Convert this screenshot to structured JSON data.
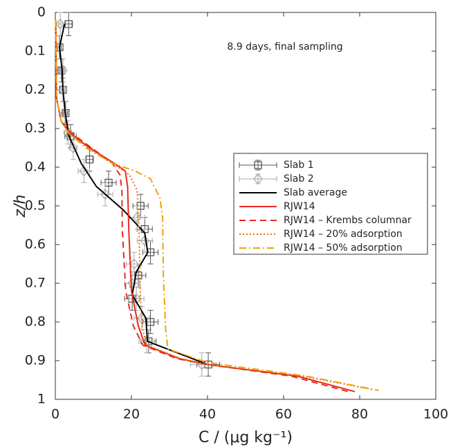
{
  "chart_data": {
    "type": "line",
    "annotation": "8.9 days, final sampling",
    "xlabel": "C / (μg kg⁻¹)",
    "ylabel": "z/h",
    "xlim": [
      0,
      100
    ],
    "xticks": [
      0,
      20,
      40,
      60,
      80,
      100
    ],
    "ylim": [
      0,
      1
    ],
    "yticks": [
      0,
      0.1,
      0.2,
      0.3,
      0.4,
      0.5,
      0.6,
      0.7,
      0.8,
      0.9,
      1
    ],
    "y_reversed": true,
    "grid": false,
    "legend_position": "right",
    "series": [
      {
        "name": "Slab 1",
        "color": "#555555",
        "marker": "square",
        "linestyle": "none",
        "x": [
          3.5,
          1.1,
          1.6,
          2.0,
          2.7,
          4.0,
          9.0,
          14.0,
          22.4,
          23.5,
          25.0,
          21.8,
          20.2,
          25.0,
          24.5,
          40.2
        ],
        "y": [
          0.03,
          0.09,
          0.15,
          0.2,
          0.26,
          0.32,
          0.38,
          0.44,
          0.5,
          0.56,
          0.62,
          0.68,
          0.74,
          0.8,
          0.85,
          0.91
        ],
        "x_err": [
          1,
          0.5,
          0.5,
          0.5,
          0.5,
          1.5,
          1,
          2,
          2,
          2,
          2,
          2,
          2,
          2,
          2,
          3
        ],
        "y_err": [
          0.03,
          0.03,
          0.03,
          0.03,
          0.03,
          0.03,
          0.03,
          0.03,
          0.03,
          0.03,
          0.03,
          0.03,
          0.03,
          0.03,
          0.03,
          0.03
        ]
      },
      {
        "name": "Slab 2",
        "color": "#aaaaaa",
        "marker": "diamond",
        "linestyle": "none",
        "x": [
          1.3,
          1.0,
          2.0,
          2.0,
          2.5,
          3.3,
          4.7,
          7.5,
          13.1,
          21.5,
          23.5,
          20.7,
          20.2,
          21.3,
          22.7,
          24.0,
          38.5
        ],
        "y": [
          0.03,
          0.09,
          0.15,
          0.2,
          0.26,
          0.31,
          0.35,
          0.41,
          0.47,
          0.53,
          0.59,
          0.65,
          0.7,
          0.74,
          0.79,
          0.85,
          0.91
        ],
        "x_err": [
          0.5,
          0.5,
          0.5,
          0.5,
          0.5,
          1,
          1,
          1.5,
          2,
          2,
          2,
          2,
          2,
          2,
          2,
          2,
          3
        ],
        "y_err": [
          0.03,
          0.03,
          0.03,
          0.03,
          0.03,
          0.03,
          0.03,
          0.03,
          0.03,
          0.03,
          0.03,
          0.03,
          0.03,
          0.03,
          0.03,
          0.03,
          0.03
        ]
      },
      {
        "name": "Slab average",
        "color": "#000000",
        "linestyle": "solid",
        "x": [
          2.4,
          1.1,
          1.8,
          2.0,
          2.6,
          3.6,
          6.8,
          10.8,
          17.8,
          23.5,
          24.3,
          21.3,
          20.2,
          23.8,
          24.2,
          40.0
        ],
        "y": [
          0.03,
          0.09,
          0.15,
          0.2,
          0.26,
          0.32,
          0.39,
          0.45,
          0.51,
          0.57,
          0.62,
          0.67,
          0.73,
          0.79,
          0.85,
          0.91
        ]
      },
      {
        "name": "RJW14",
        "color": "#e8281e",
        "linestyle": "solid",
        "x": [
          0.1,
          0.3,
          1.5,
          3.6,
          9.0,
          15.5,
          18.4,
          19.0,
          19.3,
          20.0,
          21.8,
          23.6,
          32.7,
          40.0,
          63.6,
          78.7
        ],
        "y": [
          0.02,
          0.22,
          0.28,
          0.31,
          0.35,
          0.39,
          0.41,
          0.45,
          0.56,
          0.72,
          0.81,
          0.86,
          0.895,
          0.91,
          0.94,
          0.98
        ]
      },
      {
        "name": "RJW14 – Krembs columnar",
        "color": "#e8281e",
        "linestyle": "dashed",
        "x": [
          0.1,
          0.3,
          1.5,
          4.0,
          9.5,
          15.0,
          17.0,
          17.5,
          17.6,
          18.5,
          20.5,
          23.0,
          32.0,
          40.0,
          62.0,
          77.0
        ],
        "y": [
          0.02,
          0.22,
          0.28,
          0.31,
          0.35,
          0.39,
          0.42,
          0.46,
          0.56,
          0.72,
          0.81,
          0.86,
          0.895,
          0.91,
          0.94,
          0.98
        ]
      },
      {
        "name": "RJW14 – 20% adsorption",
        "color": "#e07000",
        "linestyle": "dotted",
        "x": [
          0.1,
          0.3,
          1.5,
          3.5,
          8.5,
          15.0,
          19.5,
          21.5,
          22.0,
          22.3,
          22.8,
          24.0,
          33.0,
          40.0,
          65.0,
          83.6
        ],
        "y": [
          0.02,
          0.22,
          0.28,
          0.31,
          0.35,
          0.39,
          0.42,
          0.46,
          0.56,
          0.72,
          0.81,
          0.86,
          0.895,
          0.91,
          0.94,
          0.975
        ]
      },
      {
        "name": "RJW14 – 50% adsorption",
        "color": "#f5a000",
        "linestyle": "dashdot",
        "x": [
          0.1,
          0.3,
          1.5,
          3.3,
          8.0,
          15.0,
          21.0,
          25.0,
          27.5,
          28.2,
          28.4,
          29.0,
          29.6,
          40.0,
          66.0,
          85.0
        ],
        "y": [
          0.02,
          0.22,
          0.28,
          0.31,
          0.35,
          0.39,
          0.41,
          0.43,
          0.48,
          0.53,
          0.68,
          0.82,
          0.87,
          0.905,
          0.94,
          0.977
        ]
      }
    ]
  }
}
